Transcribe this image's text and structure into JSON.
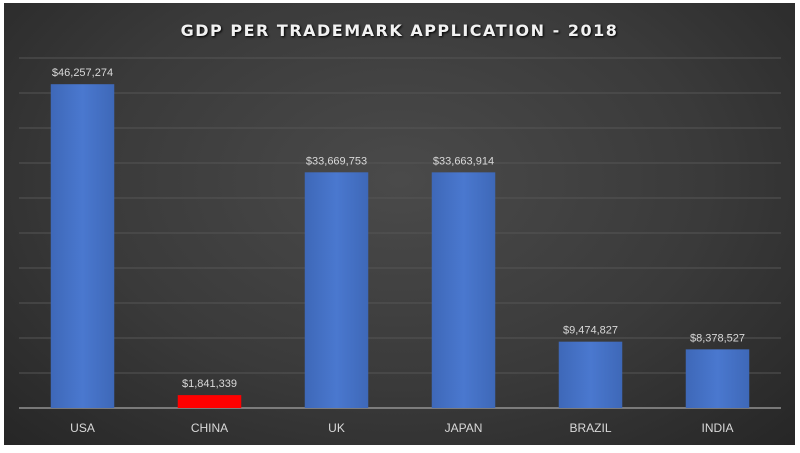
{
  "chart_data": {
    "type": "bar",
    "title": "GDP PER TRADEMARK APPLICATION - 2018",
    "categories": [
      "USA",
      "CHINA",
      "UK",
      "JAPAN",
      "BRAZIL",
      "INDIA"
    ],
    "values": [
      46257274,
      1841339,
      33669753,
      33663914,
      9474827,
      8378527
    ],
    "data_labels": [
      "$46,257,274",
      "$1,841,339",
      "$33,669,753",
      "$33,663,914",
      "$9,474,827",
      "$8,378,527"
    ],
    "bar_colors": [
      "#4472c4",
      "#ff0000",
      "#4472c4",
      "#4472c4",
      "#4472c4",
      "#4472c4"
    ],
    "xlabel": "",
    "ylabel": "",
    "ylim": [
      0,
      50000000
    ],
    "grid_step": 5000000,
    "grid": true,
    "legend": "none"
  }
}
